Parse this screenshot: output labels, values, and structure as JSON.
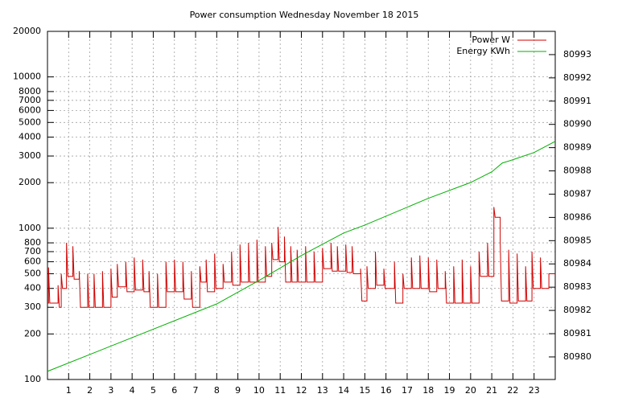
{
  "chart_data": {
    "type": "line",
    "title": "Power consumption Wednesday November 18 2015",
    "xlim": [
      0,
      24
    ],
    "xticks": [
      1,
      2,
      3,
      4,
      5,
      6,
      7,
      8,
      9,
      10,
      11,
      12,
      13,
      14,
      15,
      16,
      17,
      18,
      19,
      20,
      21,
      22,
      23
    ],
    "ylim": [
      100,
      20000
    ],
    "ylog": true,
    "yticks": [
      100,
      200,
      300,
      400,
      500,
      600,
      700,
      800,
      1000,
      2000,
      3000,
      4000,
      5000,
      6000,
      7000,
      8000,
      10000,
      20000
    ],
    "y2lim": [
      80979.03,
      80994.0
    ],
    "y2ticks": [
      80980,
      80981,
      80982,
      80983,
      80984,
      80985,
      80986,
      80987,
      80988,
      80989,
      80990,
      80991,
      80992,
      80993
    ],
    "grid": true,
    "legend": "top-right",
    "series": [
      {
        "name": "Power W",
        "color": "#d00000",
        "x": [
          0,
          0.05,
          0.05,
          0.11,
          0.5,
          0.5,
          0.56,
          0.65,
          0.65,
          0.71,
          0.9,
          0.9,
          0.96,
          1.2,
          1.2,
          1.26,
          1.5,
          1.5,
          1.56,
          1.9,
          1.9,
          1.96,
          2.2,
          2.2,
          2.26,
          2.6,
          2.6,
          2.66,
          3.0,
          3.0,
          3.06,
          3.3,
          3.3,
          3.36,
          3.7,
          3.7,
          3.76,
          4.1,
          4.1,
          4.16,
          4.5,
          4.5,
          4.56,
          4.8,
          4.8,
          4.86,
          5.2,
          5.2,
          5.26,
          5.6,
          5.6,
          5.66,
          6.0,
          6.0,
          6.06,
          6.4,
          6.4,
          6.46,
          6.8,
          6.8,
          6.86,
          7.2,
          7.2,
          7.26,
          7.5,
          7.5,
          7.56,
          7.9,
          7.9,
          7.96,
          8.3,
          8.3,
          8.36,
          8.7,
          8.7,
          8.76,
          9.1,
          9.1,
          9.16,
          9.5,
          9.5,
          9.56,
          9.9,
          9.9,
          9.96,
          10.3,
          10.3,
          10.36,
          10.6,
          10.6,
          10.66,
          10.9,
          10.9,
          10.96,
          11.2,
          11.2,
          11.26,
          11.5,
          11.5,
          11.56,
          11.8,
          11.8,
          11.86,
          12.2,
          12.2,
          12.26,
          12.6,
          12.6,
          12.66,
          13.0,
          13.0,
          13.06,
          13.4,
          13.4,
          13.46,
          13.7,
          13.7,
          13.76,
          14.1,
          14.1,
          14.16,
          14.4,
          14.4,
          14.46,
          14.8,
          14.8,
          14.86,
          15.1,
          15.1,
          15.16,
          15.5,
          15.5,
          15.56,
          15.9,
          15.9,
          15.96,
          16.4,
          16.4,
          16.46,
          16.8,
          16.8,
          16.86,
          17.2,
          17.2,
          17.26,
          17.6,
          17.6,
          17.66,
          18.0,
          18.0,
          18.06,
          18.4,
          18.4,
          18.46,
          18.8,
          18.8,
          18.86,
          19.2,
          19.2,
          19.26,
          19.6,
          19.6,
          19.66,
          20.0,
          20.0,
          20.06,
          20.4,
          20.4,
          20.46,
          20.8,
          20.8,
          20.86,
          21.1,
          21.1,
          21.16,
          21.4,
          21.4,
          21.46,
          21.8,
          21.8,
          21.86,
          22.2,
          22.2,
          22.26,
          22.6,
          22.6,
          22.66,
          22.9,
          22.9,
          22.96,
          23.3,
          23.3,
          23.36,
          23.7,
          23.7,
          23.76,
          24
        ],
        "values": [
          320,
          320,
          550,
          320,
          320,
          420,
          300,
          300,
          500,
          400,
          400,
          800,
          480,
          480,
          760,
          460,
          460,
          520,
          300,
          300,
          500,
          300,
          300,
          500,
          300,
          300,
          520,
          300,
          300,
          540,
          350,
          350,
          580,
          410,
          410,
          600,
          380,
          380,
          640,
          390,
          390,
          620,
          380,
          380,
          520,
          300,
          300,
          500,
          300,
          300,
          600,
          380,
          380,
          620,
          380,
          380,
          600,
          340,
          340,
          520,
          300,
          300,
          560,
          440,
          440,
          620,
          380,
          380,
          680,
          400,
          400,
          580,
          440,
          440,
          700,
          420,
          420,
          780,
          440,
          440,
          800,
          440,
          440,
          840,
          440,
          440,
          760,
          480,
          480,
          800,
          620,
          620,
          1020,
          600,
          600,
          880,
          440,
          440,
          760,
          440,
          440,
          720,
          440,
          440,
          760,
          440,
          440,
          700,
          440,
          440,
          740,
          540,
          540,
          800,
          520,
          520,
          760,
          520,
          520,
          780,
          510,
          510,
          760,
          500,
          500,
          540,
          330,
          330,
          560,
          400,
          400,
          700,
          420,
          420,
          540,
          400,
          400,
          600,
          320,
          320,
          500,
          400,
          400,
          640,
          400,
          400,
          660,
          400,
          400,
          640,
          380,
          380,
          620,
          400,
          400,
          520,
          320,
          320,
          560,
          320,
          320,
          620,
          320,
          320,
          560,
          320,
          320,
          700,
          480,
          480,
          800,
          480,
          480,
          1380,
          1180,
          1180,
          800,
          330,
          330,
          720,
          320,
          320,
          680,
          330,
          330,
          560,
          330,
          330,
          700,
          400,
          400,
          640,
          400,
          400,
          500,
          500,
          500
        ]
      },
      {
        "name": "Energy KWh",
        "color": "#00b000",
        "axis": "y2",
        "x": [
          0,
          4,
          8,
          10,
          12,
          14,
          15,
          18,
          20,
          21,
          21.5,
          22,
          23,
          24
        ],
        "values": [
          80979.38,
          80980.83,
          80982.28,
          80983.29,
          80984.36,
          80985.33,
          80985.67,
          80986.82,
          80987.5,
          80987.96,
          80988.34,
          80988.48,
          80988.79,
          80989.27
        ]
      }
    ]
  }
}
